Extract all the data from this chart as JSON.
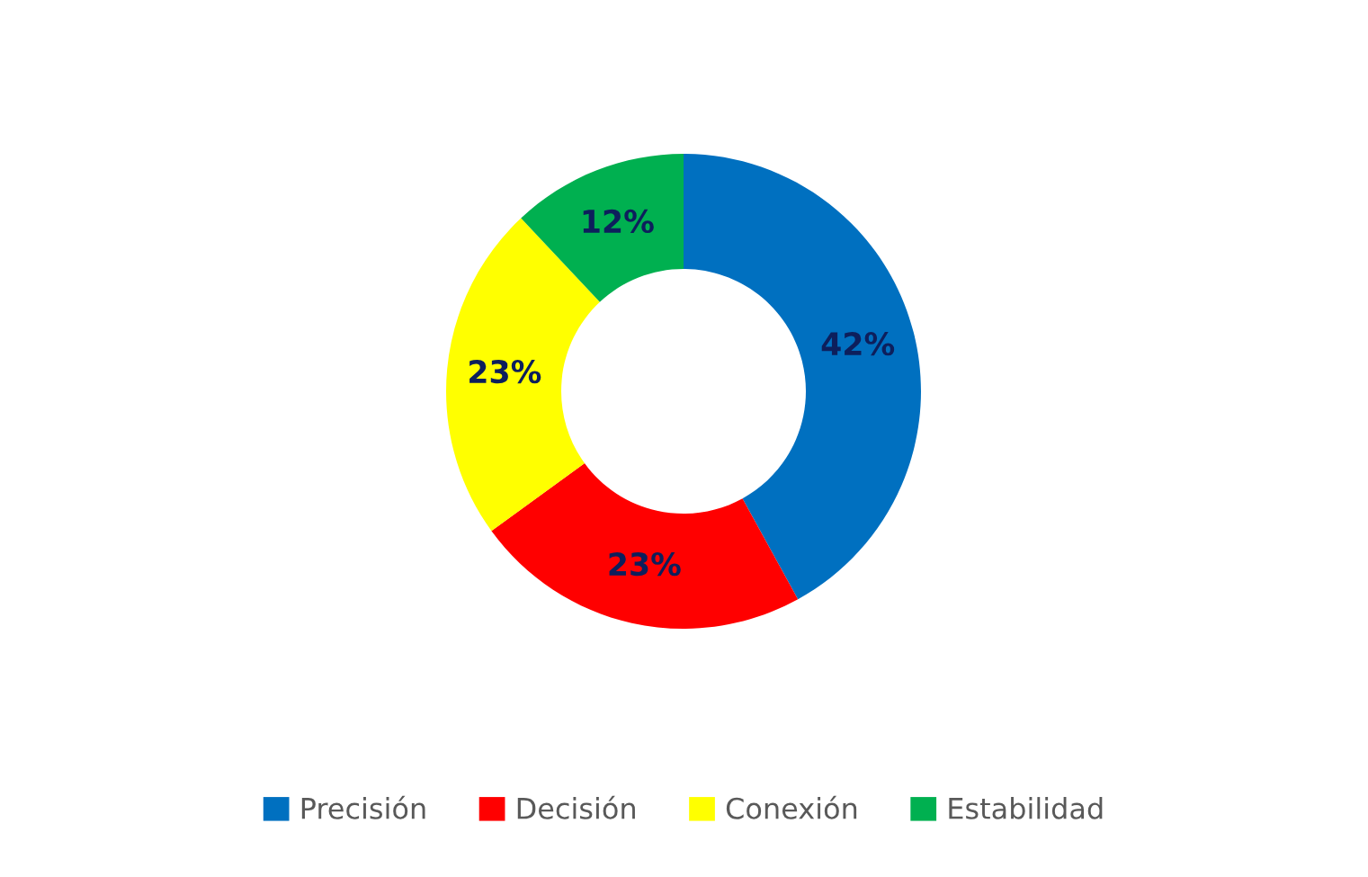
{
  "chart_data": {
    "type": "donut",
    "categories": [
      "Precisión",
      "Decisión",
      "Conexión",
      "Estabilidad"
    ],
    "values": [
      42,
      23,
      23,
      12
    ],
    "colors": [
      "#0070c0",
      "#ff0000",
      "#ffff00",
      "#00b050"
    ],
    "value_labels": [
      "42%",
      "23%",
      "23%",
      "12%"
    ],
    "legend": "bottom"
  }
}
